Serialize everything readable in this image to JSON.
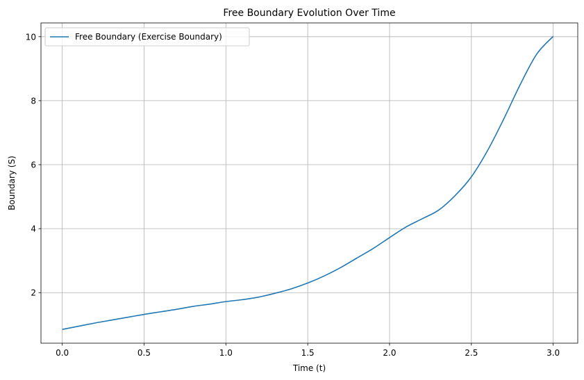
{
  "chart_data": {
    "type": "line",
    "title": "Free Boundary Evolution Over Time",
    "xlabel": "Time (t)",
    "ylabel": "Boundary (S)",
    "xlim": [
      -0.13,
      3.15
    ],
    "ylim": [
      0.42,
      10.43
    ],
    "xticks": [
      0.0,
      0.5,
      1.0,
      1.5,
      2.0,
      2.5,
      3.0
    ],
    "xtick_labels": [
      "0.0",
      "0.5",
      "1.0",
      "1.5",
      "2.0",
      "2.5",
      "3.0"
    ],
    "yticks": [
      2,
      4,
      6,
      8,
      10
    ],
    "ytick_labels": [
      "2",
      "4",
      "6",
      "8",
      "10"
    ],
    "grid": true,
    "legend": "upper left",
    "series": [
      {
        "name": "Free Boundary (Exercise Boundary)",
        "color": "#1f77b4",
        "x": [
          0.0,
          0.1,
          0.2,
          0.3,
          0.4,
          0.5,
          0.6,
          0.7,
          0.8,
          0.9,
          1.0,
          1.1,
          1.2,
          1.3,
          1.4,
          1.5,
          1.6,
          1.7,
          1.8,
          1.9,
          2.0,
          2.1,
          2.2,
          2.3,
          2.4,
          2.5,
          2.6,
          2.7,
          2.8,
          2.9,
          3.0
        ],
        "y": [
          0.85,
          0.95,
          1.05,
          1.14,
          1.23,
          1.32,
          1.4,
          1.48,
          1.57,
          1.64,
          1.72,
          1.78,
          1.86,
          1.98,
          2.12,
          2.3,
          2.52,
          2.78,
          3.08,
          3.38,
          3.72,
          4.05,
          4.31,
          4.58,
          5.03,
          5.62,
          6.45,
          7.45,
          8.52,
          9.46,
          10.01
        ]
      }
    ]
  }
}
